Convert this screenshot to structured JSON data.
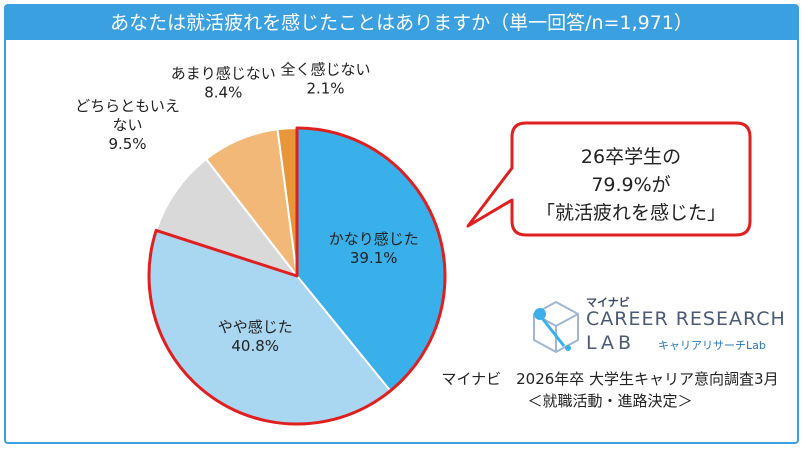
{
  "title": "あなたは就活疲れを感じたことはありますか（単一回答/n=1,971）",
  "chart_data": {
    "type": "pie",
    "start_angle_deg": 0,
    "direction": "clockwise",
    "slices": [
      {
        "label": "かなり感じた",
        "value": 39.1,
        "value_label": "39.1%",
        "color": "#3ab0ea",
        "highlighted": true
      },
      {
        "label": "やや感じた",
        "value": 40.8,
        "value_label": "40.8%",
        "color": "#a9d6f0",
        "highlighted": true
      },
      {
        "label": "どちらともいえない",
        "label_lines": [
          "どちらともいえ",
          "ない"
        ],
        "value": 9.5,
        "value_label": "9.5%",
        "color": "#d9d9d9",
        "highlighted": false
      },
      {
        "label": "あまり感じない",
        "value": 8.4,
        "value_label": "8.4%",
        "color": "#f1b878",
        "highlighted": false
      },
      {
        "label": "全く感じない",
        "value": 2.1,
        "value_label": "2.1%",
        "color": "#e8963a",
        "highlighted": false
      }
    ]
  },
  "callout": {
    "line1": "26卒学生の",
    "line2": "79.9%が",
    "line3": "「就活疲れを感じた」",
    "border_color": "#e02020"
  },
  "logo": {
    "brand_small": "マイナビ",
    "brand_main": "CAREER RESEARCH",
    "brand_lab": "LAB",
    "brand_sub": "キャリアリサーチLab"
  },
  "source": {
    "line1": "マイナビ　2026年卒 大学生キャリア意向調査3月",
    "line2": "＜就職活動・進路決定＞"
  },
  "colors": {
    "header": "#3aa0e0",
    "highlight": "#e02020",
    "accent": "#e02020"
  }
}
